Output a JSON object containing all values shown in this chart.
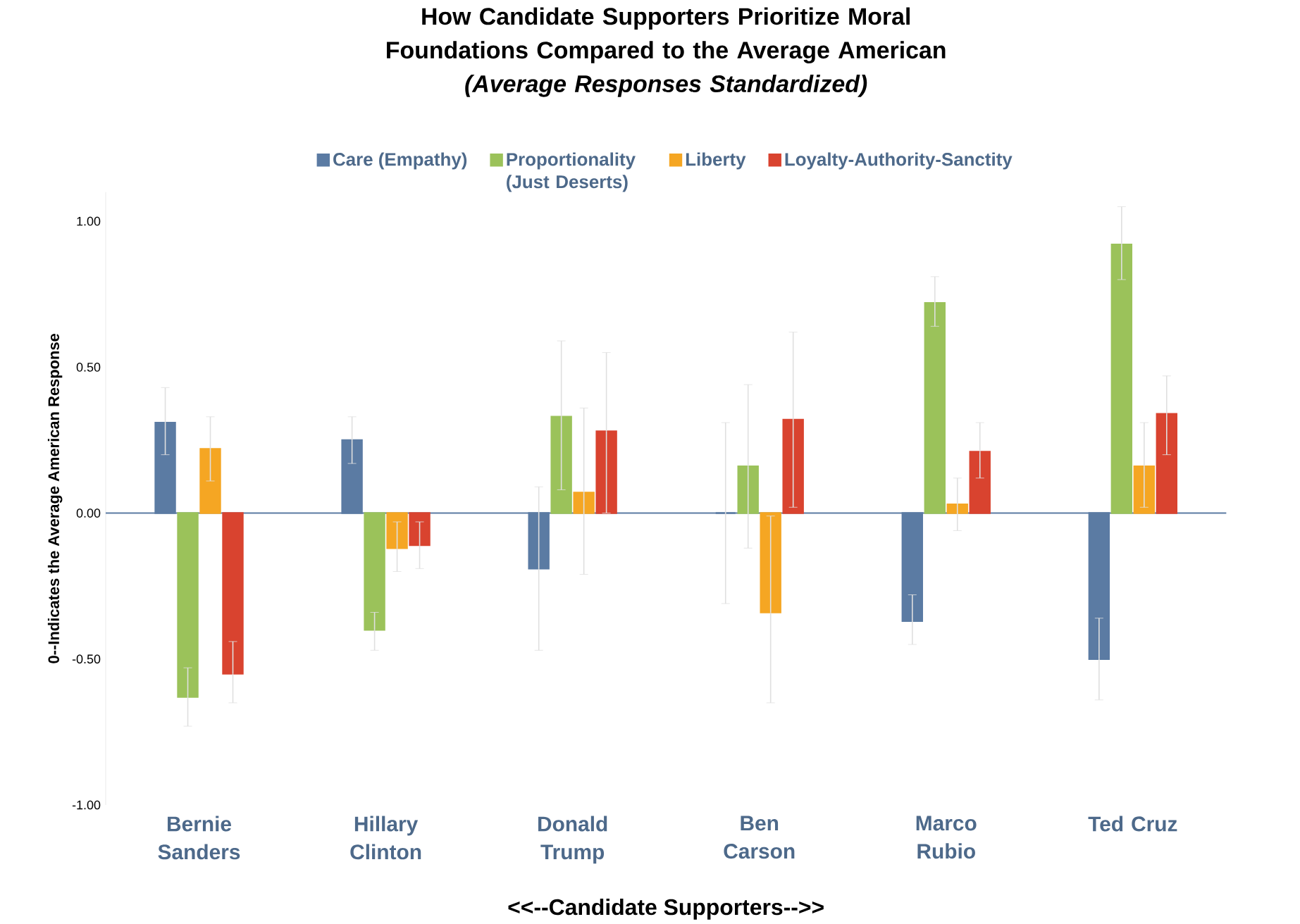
{
  "chart_data": {
    "type": "bar",
    "title": "How Candidate Supporters Prioritize Moral Foundations Compared to the Average American",
    "subtitle": "(Average Responses Standardized)",
    "xlabel": "<<--Candidate Supporters-->>",
    "ylabel": "0--Indicates the Average American Response",
    "categories": [
      "Bernie Sanders",
      "Hillary Clinton",
      "Donald Trump",
      "Ben Carson",
      "Marco Rubio",
      "Ted Cruz"
    ],
    "series": [
      {
        "name": "Care (Empathy)",
        "color": "#5b7ba3",
        "values": [
          0.31,
          0.25,
          -0.19,
          0.0,
          -0.37,
          -0.5
        ],
        "errors": [
          [
            0.2,
            0.43
          ],
          [
            0.17,
            0.33
          ],
          [
            -0.47,
            0.09
          ],
          [
            -0.31,
            0.31
          ],
          [
            -0.45,
            -0.28
          ],
          [
            -0.64,
            -0.36
          ]
        ]
      },
      {
        "name": "Proportionality (Just Deserts)",
        "color": "#9bc25a",
        "values": [
          -0.63,
          -0.4,
          0.33,
          0.16,
          0.72,
          0.92
        ],
        "errors": [
          [
            -0.73,
            -0.53
          ],
          [
            -0.47,
            -0.34
          ],
          [
            0.08,
            0.59
          ],
          [
            -0.12,
            0.44
          ],
          [
            0.64,
            0.81
          ],
          [
            0.8,
            1.05
          ]
        ]
      },
      {
        "name": "Liberty",
        "color": "#f5a623",
        "values": [
          0.22,
          -0.12,
          0.07,
          -0.34,
          0.03,
          0.16
        ],
        "errors": [
          [
            0.11,
            0.33
          ],
          [
            -0.2,
            -0.03
          ],
          [
            -0.21,
            0.36
          ],
          [
            -0.65,
            -0.01
          ],
          [
            -0.06,
            0.12
          ],
          [
            0.02,
            0.31
          ]
        ]
      },
      {
        "name": "Loyalty-Authority-Sanctity",
        "color": "#d9432f",
        "values": [
          -0.55,
          -0.11,
          0.28,
          0.32,
          0.21,
          0.34
        ],
        "errors": [
          [
            -0.65,
            -0.44
          ],
          [
            -0.19,
            -0.03
          ],
          [
            0.0,
            0.55
          ],
          [
            0.02,
            0.62
          ],
          [
            0.12,
            0.31
          ],
          [
            0.2,
            0.47
          ]
        ]
      }
    ],
    "ylim": [
      -1.0,
      1.1
    ],
    "yticks": [
      {
        "value": -1,
        "label": "-1.00"
      },
      {
        "value": -0.5,
        "label": "-0.50"
      },
      {
        "value": 0,
        "label": "0.00"
      },
      {
        "value": 0.5,
        "label": "0.50"
      },
      {
        "value": 1,
        "label": "1.00"
      }
    ],
    "ref_lines": [
      {
        "axis": "y",
        "value": 0,
        "color": "#5b7ba3"
      }
    ],
    "legend": "top"
  }
}
